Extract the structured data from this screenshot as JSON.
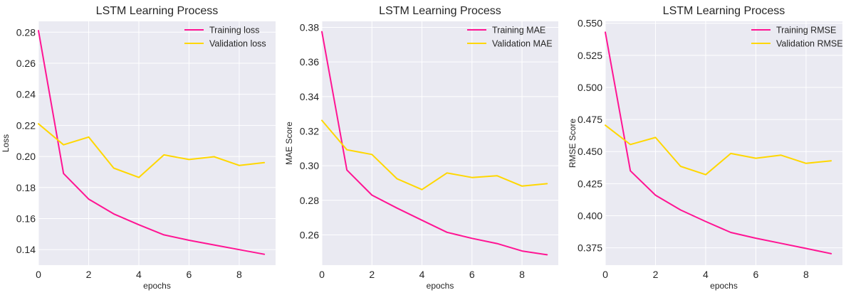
{
  "chart_data": [
    {
      "type": "line",
      "title": "LSTM Learning Process",
      "xlabel": "epochs",
      "ylabel": "Loss",
      "x": [
        0,
        1,
        2,
        3,
        4,
        5,
        6,
        7,
        8,
        9
      ],
      "xlim": [
        0,
        9.45
      ],
      "ylim": [
        0.13,
        0.287
      ],
      "xticks": [
        0,
        2,
        4,
        6,
        8
      ],
      "yticks": [
        0.14,
        0.16,
        0.18,
        0.2,
        0.22,
        0.24,
        0.26,
        0.28
      ],
      "ytick_format": 2,
      "grid": true,
      "legend_position": "top-right",
      "series": [
        {
          "name": "Training loss",
          "color": "#ff1493",
          "values": [
            0.281,
            0.189,
            0.1725,
            0.163,
            0.156,
            0.1495,
            0.146,
            0.143,
            0.14,
            0.137
          ]
        },
        {
          "name": "Validation loss",
          "color": "#ffd700",
          "values": [
            0.221,
            0.2075,
            0.2125,
            0.1925,
            0.1865,
            0.201,
            0.198,
            0.1998,
            0.1942,
            0.196
          ]
        }
      ]
    },
    {
      "type": "line",
      "title": "LSTM Learning Process",
      "xlabel": "epochs",
      "ylabel": "MAE Score",
      "x": [
        0,
        1,
        2,
        3,
        4,
        5,
        6,
        7,
        8,
        9
      ],
      "xlim": [
        0,
        9.45
      ],
      "ylim": [
        0.2425,
        0.3835
      ],
      "xticks": [
        0,
        2,
        4,
        6,
        8
      ],
      "yticks": [
        0.26,
        0.28,
        0.3,
        0.32,
        0.34,
        0.36,
        0.38
      ],
      "ytick_format": 2,
      "grid": true,
      "legend_position": "top-right",
      "series": [
        {
          "name": "Training MAE",
          "color": "#ff1493",
          "values": [
            0.3775,
            0.2975,
            0.283,
            0.2755,
            0.2685,
            0.2615,
            0.258,
            0.255,
            0.2507,
            0.2485
          ]
        },
        {
          "name": "Validation MAE",
          "color": "#ffd700",
          "values": [
            0.3262,
            0.3092,
            0.3065,
            0.2925,
            0.2862,
            0.2958,
            0.2932,
            0.2942,
            0.2882,
            0.2896
          ]
        }
      ]
    },
    {
      "type": "line",
      "title": "LSTM Learning Process",
      "xlabel": "epochs",
      "ylabel": "RMSE Score",
      "x": [
        0,
        1,
        2,
        3,
        4,
        5,
        6,
        7,
        8,
        9
      ],
      "xlim": [
        0,
        9.45
      ],
      "ylim": [
        0.3615,
        0.5515
      ],
      "xticks": [
        0,
        2,
        4,
        6,
        8
      ],
      "yticks": [
        0.375,
        0.4,
        0.425,
        0.45,
        0.475,
        0.5,
        0.525,
        0.55
      ],
      "ytick_format": 3,
      "grid": true,
      "legend_position": "top-right",
      "series": [
        {
          "name": "Training RMSE",
          "color": "#ff1493",
          "values": [
            0.543,
            0.435,
            0.416,
            0.4045,
            0.3955,
            0.387,
            0.3825,
            0.3785,
            0.3745,
            0.3705
          ]
        },
        {
          "name": "Validation RMSE",
          "color": "#ffd700",
          "values": [
            0.4705,
            0.4555,
            0.461,
            0.4385,
            0.432,
            0.4485,
            0.4448,
            0.4472,
            0.4408,
            0.4428
          ]
        }
      ]
    }
  ]
}
